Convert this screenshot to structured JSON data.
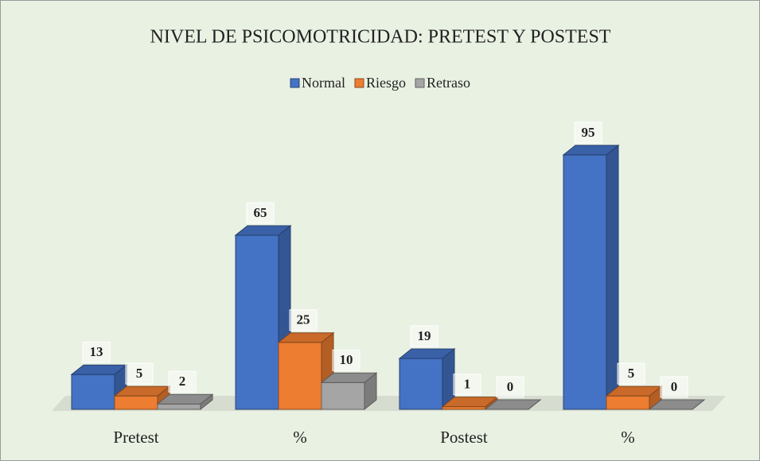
{
  "chart_data": {
    "type": "bar3d",
    "title": "NIVEL DE PSICOMOTRICIDAD: PRETEST Y POSTEST",
    "categories": [
      "Pretest",
      "%",
      "Postest",
      "%"
    ],
    "series": [
      {
        "name": "Normal",
        "color": "#4472c4",
        "values": [
          13,
          65,
          19,
          95
        ]
      },
      {
        "name": "Riesgo",
        "color": "#ed7d31",
        "values": [
          5,
          25,
          1,
          5
        ]
      },
      {
        "name": "Retraso",
        "color": "#a5a5a5",
        "values": [
          2,
          10,
          0,
          0
        ]
      }
    ],
    "ylim": [
      0,
      100
    ],
    "legend": "top"
  }
}
